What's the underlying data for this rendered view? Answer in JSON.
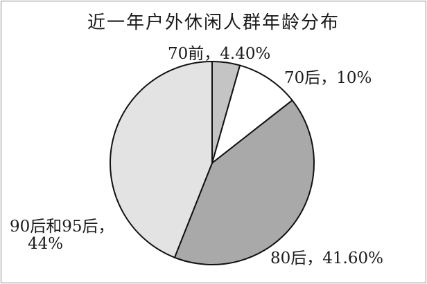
{
  "chart_data": {
    "type": "pie",
    "title": "近一年户外休闲人群年龄分布",
    "start_angle": "top, clockwise",
    "slices": [
      {
        "label": "70前",
        "value": 4.4,
        "text": "70前，4.40%",
        "color": "#c4c4c4"
      },
      {
        "label": "70后",
        "value": 10,
        "text": "70后，10%",
        "color": "#ffffff"
      },
      {
        "label": "80后",
        "value": 41.6,
        "text": "80后，41.60%",
        "color": "#a9a9a9"
      },
      {
        "label": "90后和95后",
        "value": 44,
        "text_line1": "90后和95后，",
        "text_line2": "44%",
        "color": "#e3e3e3"
      }
    ]
  }
}
